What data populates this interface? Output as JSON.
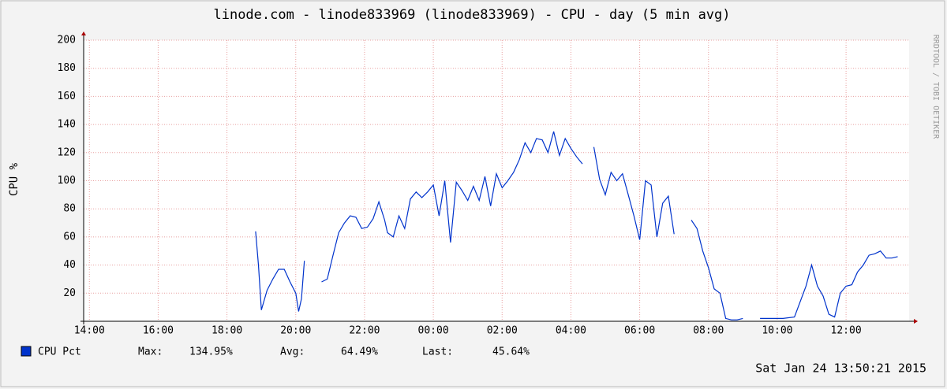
{
  "chart_data": {
    "type": "line",
    "title": "linode.com - linode833969 (linode833969) - CPU - day (5 min avg)",
    "y_label": "CPU %",
    "side_label": "RRDTOOL / TOBI OETIKER",
    "xlim": [
      "13:50",
      "13:50"
    ],
    "xticks": [
      "14:00",
      "16:00",
      "18:00",
      "20:00",
      "22:00",
      "00:00",
      "02:00",
      "04:00",
      "06:00",
      "08:00",
      "10:00",
      "12:00"
    ],
    "ylim": [
      0,
      200
    ],
    "yticks": [
      20,
      40,
      60,
      80,
      100,
      120,
      140,
      160,
      180,
      200
    ],
    "grid": true,
    "x": [
      "18:50",
      "18:55",
      "19:00",
      "19:10",
      "19:20",
      "19:30",
      "19:40",
      "19:50",
      "20:00",
      "20:05",
      "20:10",
      "20:15",
      "20:20",
      "20:45",
      "20:55",
      "21:05",
      "21:15",
      "21:25",
      "21:35",
      "21:45",
      "21:55",
      "22:05",
      "22:15",
      "22:25",
      "22:35",
      "22:40",
      "22:50",
      "23:00",
      "23:10",
      "23:20",
      "23:30",
      "23:40",
      "23:50",
      "00:00",
      "00:10",
      "00:20",
      "00:30",
      "00:40",
      "00:50",
      "01:00",
      "01:10",
      "01:20",
      "01:30",
      "01:40",
      "01:50",
      "02:00",
      "02:10",
      "02:20",
      "02:30",
      "02:40",
      "02:50",
      "03:00",
      "03:10",
      "03:20",
      "03:30",
      "03:40",
      "03:50",
      "04:00",
      "04:10",
      "04:20",
      "04:30",
      "04:40",
      "04:50",
      "05:00",
      "05:10",
      "05:20",
      "05:30",
      "05:40",
      "05:50",
      "06:00",
      "06:10",
      "06:20",
      "06:30",
      "06:40",
      "06:50",
      "07:00",
      "07:10",
      "07:30",
      "07:40",
      "07:50",
      "08:00",
      "08:10",
      "08:20",
      "08:30",
      "08:40",
      "08:50",
      "09:00",
      "09:10",
      "09:30",
      "09:50",
      "10:10",
      "10:30",
      "10:50",
      "11:00",
      "11:10",
      "11:20",
      "11:30",
      "11:40",
      "11:50",
      "12:00",
      "12:10",
      "12:20",
      "12:30",
      "12:40",
      "12:50",
      "13:00",
      "13:10",
      "13:20",
      "13:30"
    ],
    "series": [
      {
        "name": "CPU Pct",
        "color": "#0033cc",
        "values": [
          64,
          40,
          8,
          22,
          30,
          37,
          37,
          28,
          20,
          7,
          16,
          43,
          null,
          28,
          30,
          47,
          63,
          70,
          75,
          74,
          66,
          67,
          73,
          85,
          72,
          63,
          60,
          75,
          66,
          87,
          92,
          88,
          92,
          97,
          75,
          100,
          56,
          99,
          93,
          86,
          96,
          86,
          103,
          82,
          105,
          95,
          100,
          106,
          115,
          127,
          120,
          130,
          129,
          120,
          135,
          118,
          130,
          123,
          117,
          112,
          null,
          124,
          101,
          90,
          106,
          100,
          105,
          90,
          75,
          58,
          100,
          97,
          60,
          84,
          89,
          62,
          null,
          72,
          66,
          50,
          38,
          23,
          20,
          2,
          1,
          1,
          2,
          null,
          2,
          2,
          2,
          3,
          25,
          40,
          25,
          18,
          5,
          3,
          20,
          25,
          26,
          35,
          40,
          47,
          48,
          50,
          45,
          45,
          46
        ]
      }
    ],
    "legend_stats": [
      [
        "Max:",
        "134.95%"
      ],
      [
        "Avg:",
        "64.49%"
      ],
      [
        "Last:",
        "45.64%"
      ]
    ],
    "timestamp": "Sat Jan 24 13:50:21 2015"
  }
}
